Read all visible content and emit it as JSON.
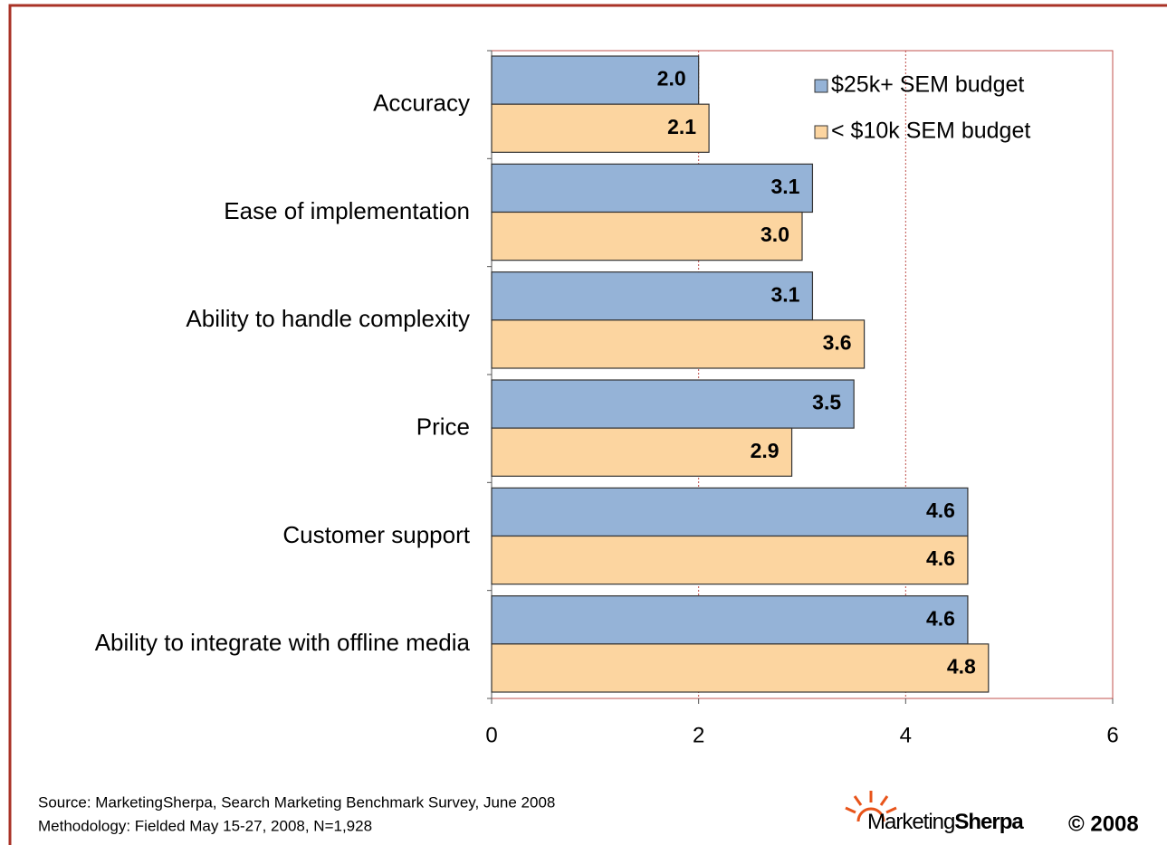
{
  "chart_data": {
    "type": "barh",
    "categories": [
      "Accuracy",
      "Ease of implementation",
      "Ability to handle complexity",
      "Price",
      "Customer support",
      "Ability to integrate with offline media"
    ],
    "series": [
      {
        "name": "$25k+ SEM budget",
        "color": "#95b3d7",
        "values": [
          2.0,
          3.1,
          3.1,
          3.5,
          4.6,
          4.6
        ],
        "value_labels": [
          "2.0",
          "3.1",
          "3.1",
          "3.5",
          "4.6",
          "4.6"
        ]
      },
      {
        "name": "< $10k SEM budget",
        "color": "#fcd5a0",
        "values": [
          2.1,
          3.0,
          3.6,
          2.9,
          4.6,
          4.8
        ],
        "value_labels": [
          "2.1",
          "3.0",
          "3.6",
          "2.9",
          "4.6",
          "4.8"
        ]
      }
    ],
    "xlim": [
      0,
      6
    ],
    "xticks": [
      0,
      2,
      4,
      6
    ],
    "grid": true,
    "legend": "upper right",
    "source": "Source: MarketingSherpa, Search Marketing Benchmark Survey, June 2008",
    "methodology": "Methodology: Fielded May 15-27, 2008, N=1,928",
    "logo_light": "Marketing",
    "logo_bold": "Sherpa",
    "copyright": "© 2008"
  }
}
